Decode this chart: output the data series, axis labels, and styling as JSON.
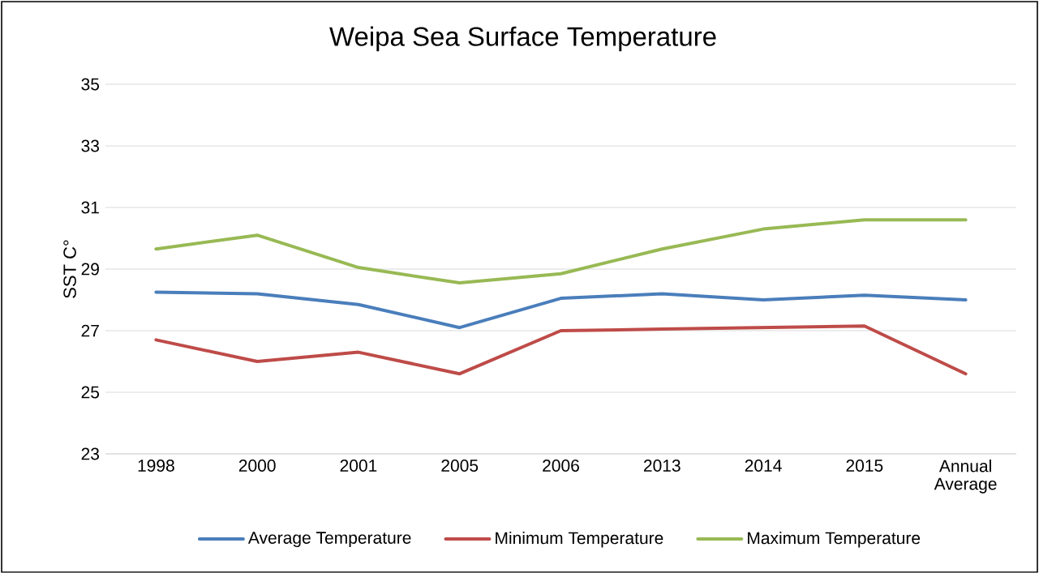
{
  "chart_data": {
    "type": "line",
    "title": "Weipa Sea Surface Temperature",
    "ylabel": "SST C°",
    "categories": [
      "1998",
      "2000",
      "2001",
      "2005",
      "2006",
      "2013",
      "2014",
      "2015",
      "Annual Average"
    ],
    "series": [
      {
        "name": "Average Temperature",
        "color": "#4a7ebb",
        "values": [
          28.25,
          28.2,
          27.85,
          27.1,
          28.05,
          28.2,
          28.0,
          28.15,
          28.0
        ]
      },
      {
        "name": "Minimum Temperature",
        "color": "#be4b48",
        "values": [
          26.7,
          26.0,
          26.3,
          25.6,
          27.0,
          27.05,
          27.1,
          27.15,
          25.6
        ]
      },
      {
        "name": "Maximum Temperature",
        "color": "#98b954",
        "values": [
          29.65,
          30.1,
          29.05,
          28.55,
          28.85,
          29.65,
          30.3,
          30.6,
          30.6
        ]
      }
    ],
    "ylim": [
      23,
      35
    ],
    "yticks": [
      23,
      25,
      27,
      29,
      31,
      33,
      35
    ],
    "grid": "y",
    "legend": "bottom",
    "marker": "none",
    "line_style": "solid"
  }
}
